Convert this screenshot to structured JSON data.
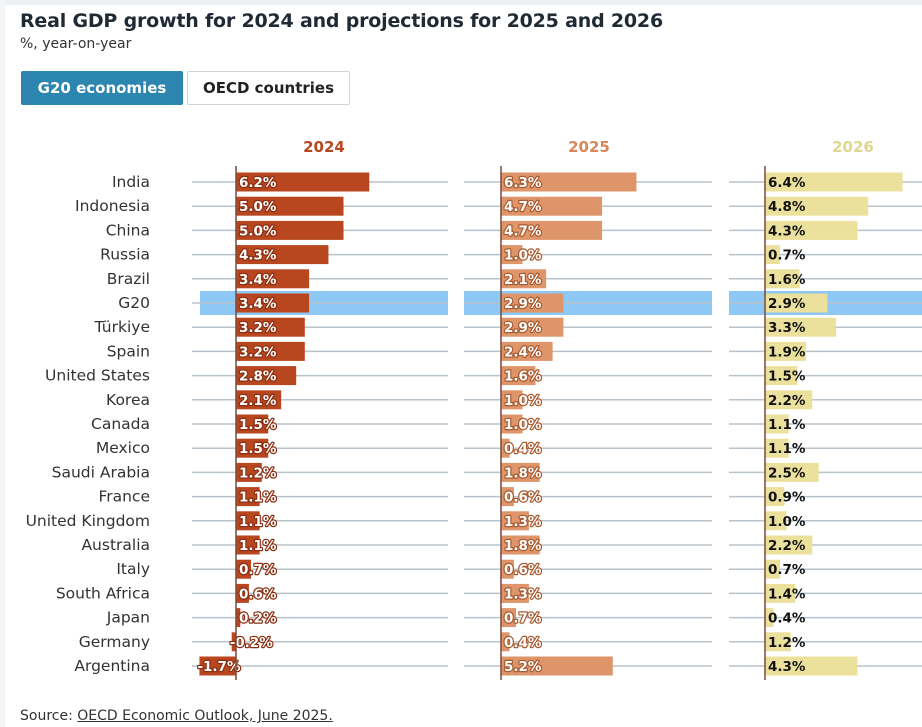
{
  "header": {
    "title": "Real GDP growth for 2024 and projections for 2025 and 2026",
    "subtitle": "%, year-on-year"
  },
  "tabs": [
    {
      "label": "G20 economies",
      "active": true
    },
    {
      "label": "OECD countries",
      "active": false
    }
  ],
  "footer": {
    "source_prefix": "Source: ",
    "source_link": "OECD Economic Outlook, June 2025."
  },
  "colors": {
    "y2024": "#b8461f",
    "y2025": "#de956a",
    "y2026": "#ebe09c",
    "highlight": "#8ec8f5",
    "grid": "#b9c3cc",
    "axis": "#7a4a3a"
  },
  "chart_data": {
    "type": "bar",
    "orientation": "horizontal",
    "categories": [
      "India",
      "Indonesia",
      "China",
      "Russia",
      "Brazil",
      "G20",
      "Türkiye",
      "Spain",
      "United States",
      "Korea",
      "Canada",
      "Mexico",
      "Saudi Arabia",
      "France",
      "United Kingdom",
      "Australia",
      "Italy",
      "South Africa",
      "Japan",
      "Germany",
      "Argentina"
    ],
    "highlight_category": "G20",
    "unit": "%",
    "series": [
      {
        "name": "2024",
        "values": [
          6.2,
          5.0,
          5.0,
          4.3,
          3.4,
          3.4,
          3.2,
          3.2,
          2.8,
          2.1,
          1.5,
          1.5,
          1.2,
          1.1,
          1.1,
          1.1,
          0.7,
          0.6,
          0.2,
          -0.2,
          -1.7
        ],
        "labels": [
          "6.2%",
          "5.0%",
          "5.0%",
          "4.3%",
          "3.4%",
          "3.4%",
          "3.2%",
          "3.2%",
          "2.8%",
          "2.1%",
          "1.5%",
          "1.5%",
          "1.2%",
          "1.1%",
          "1.1%",
          "1.1%",
          "0.7%",
          "0.6%",
          "0.2%",
          "-0.2%",
          "-1.7%"
        ]
      },
      {
        "name": "2025",
        "values": [
          6.3,
          4.7,
          4.7,
          1.0,
          2.1,
          2.9,
          2.9,
          2.4,
          1.6,
          1.0,
          1.0,
          0.4,
          1.8,
          0.6,
          1.3,
          1.8,
          0.6,
          1.3,
          0.7,
          0.4,
          5.2
        ],
        "labels": [
          "6.3%",
          "4.7%",
          "4.7%",
          "1.0%",
          "2.1%",
          "2.9%",
          "2.9%",
          "2.4%",
          "1.6%",
          "1.0%",
          "1.0%",
          "0.4%",
          "1.8%",
          "0.6%",
          "1.3%",
          "1.8%",
          "0.6%",
          "1.3%",
          "0.7%",
          "0.4%",
          "5.2%"
        ]
      },
      {
        "name": "2026",
        "values": [
          6.4,
          4.8,
          4.3,
          0.7,
          1.6,
          2.9,
          3.3,
          1.9,
          1.5,
          2.2,
          1.1,
          1.1,
          2.5,
          0.9,
          1.0,
          2.2,
          0.7,
          1.4,
          0.4,
          1.2,
          4.3
        ],
        "labels": [
          "6.4%",
          "4.8%",
          "4.3%",
          "0.7%",
          "1.6%",
          "2.9%",
          "3.3%",
          "1.9%",
          "1.5%",
          "2.2%",
          "1.1%",
          "1.1%",
          "2.5%",
          "0.9%",
          "1.0%",
          "2.2%",
          "0.7%",
          "1.4%",
          "0.4%",
          "1.2%",
          "4.3%"
        ]
      }
    ],
    "grid": true,
    "legend": "none"
  }
}
